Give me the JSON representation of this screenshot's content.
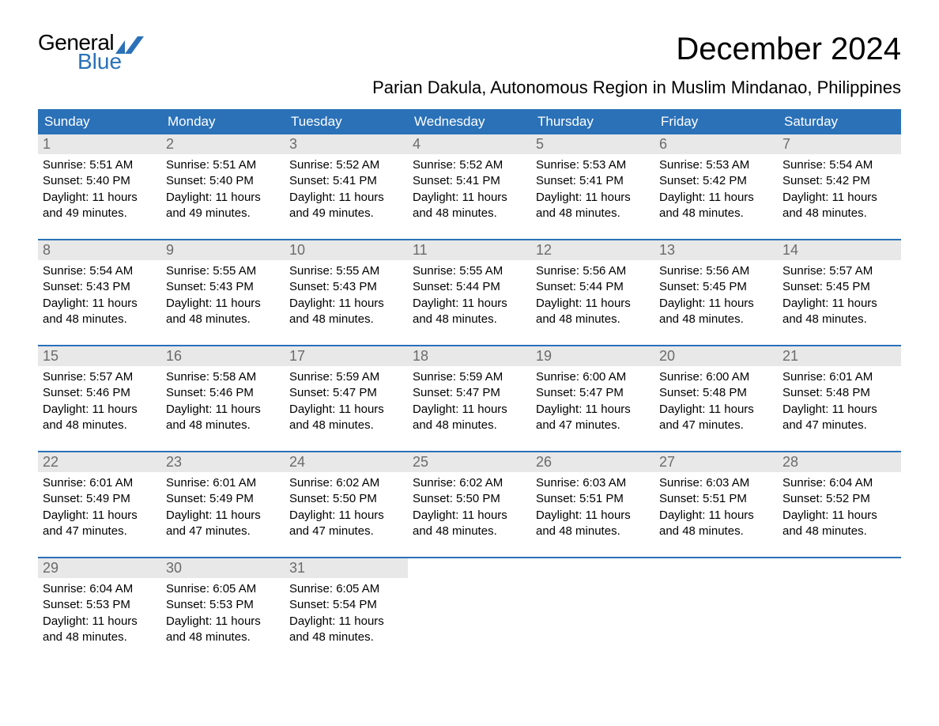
{
  "brand": {
    "word1": "General",
    "word2": "Blue",
    "accent_color": "#2a71b8"
  },
  "header": {
    "title": "December 2024",
    "subtitle": "Parian Dakula, Autonomous Region in Muslim Mindanao, Philippines"
  },
  "weekdays": [
    "Sunday",
    "Monday",
    "Tuesday",
    "Wednesday",
    "Thursday",
    "Friday",
    "Saturday"
  ],
  "style": {
    "weekday_bg": "#2a71b8",
    "weekday_fg": "#ffffff",
    "daynum_bg": "#e8e8e8",
    "daynum_fg": "#6b6b6b",
    "week_border": "#2a71b8",
    "body_bg": "#ffffff",
    "text_color": "#000000",
    "title_fontsize": 40,
    "subtitle_fontsize": 22,
    "weekday_fontsize": 17,
    "daynum_fontsize": 18,
    "body_fontsize": 15
  },
  "month": {
    "year": 2024,
    "month": 12,
    "start_weekday_index": 0,
    "num_days": 31
  },
  "days": [
    {
      "n": 1,
      "sunrise": "5:51 AM",
      "sunset": "5:40 PM",
      "daylight": "11 hours and 49 minutes."
    },
    {
      "n": 2,
      "sunrise": "5:51 AM",
      "sunset": "5:40 PM",
      "daylight": "11 hours and 49 minutes."
    },
    {
      "n": 3,
      "sunrise": "5:52 AM",
      "sunset": "5:41 PM",
      "daylight": "11 hours and 49 minutes."
    },
    {
      "n": 4,
      "sunrise": "5:52 AM",
      "sunset": "5:41 PM",
      "daylight": "11 hours and 48 minutes."
    },
    {
      "n": 5,
      "sunrise": "5:53 AM",
      "sunset": "5:41 PM",
      "daylight": "11 hours and 48 minutes."
    },
    {
      "n": 6,
      "sunrise": "5:53 AM",
      "sunset": "5:42 PM",
      "daylight": "11 hours and 48 minutes."
    },
    {
      "n": 7,
      "sunrise": "5:54 AM",
      "sunset": "5:42 PM",
      "daylight": "11 hours and 48 minutes."
    },
    {
      "n": 8,
      "sunrise": "5:54 AM",
      "sunset": "5:43 PM",
      "daylight": "11 hours and 48 minutes."
    },
    {
      "n": 9,
      "sunrise": "5:55 AM",
      "sunset": "5:43 PM",
      "daylight": "11 hours and 48 minutes."
    },
    {
      "n": 10,
      "sunrise": "5:55 AM",
      "sunset": "5:43 PM",
      "daylight": "11 hours and 48 minutes."
    },
    {
      "n": 11,
      "sunrise": "5:55 AM",
      "sunset": "5:44 PM",
      "daylight": "11 hours and 48 minutes."
    },
    {
      "n": 12,
      "sunrise": "5:56 AM",
      "sunset": "5:44 PM",
      "daylight": "11 hours and 48 minutes."
    },
    {
      "n": 13,
      "sunrise": "5:56 AM",
      "sunset": "5:45 PM",
      "daylight": "11 hours and 48 minutes."
    },
    {
      "n": 14,
      "sunrise": "5:57 AM",
      "sunset": "5:45 PM",
      "daylight": "11 hours and 48 minutes."
    },
    {
      "n": 15,
      "sunrise": "5:57 AM",
      "sunset": "5:46 PM",
      "daylight": "11 hours and 48 minutes."
    },
    {
      "n": 16,
      "sunrise": "5:58 AM",
      "sunset": "5:46 PM",
      "daylight": "11 hours and 48 minutes."
    },
    {
      "n": 17,
      "sunrise": "5:59 AM",
      "sunset": "5:47 PM",
      "daylight": "11 hours and 48 minutes."
    },
    {
      "n": 18,
      "sunrise": "5:59 AM",
      "sunset": "5:47 PM",
      "daylight": "11 hours and 48 minutes."
    },
    {
      "n": 19,
      "sunrise": "6:00 AM",
      "sunset": "5:47 PM",
      "daylight": "11 hours and 47 minutes."
    },
    {
      "n": 20,
      "sunrise": "6:00 AM",
      "sunset": "5:48 PM",
      "daylight": "11 hours and 47 minutes."
    },
    {
      "n": 21,
      "sunrise": "6:01 AM",
      "sunset": "5:48 PM",
      "daylight": "11 hours and 47 minutes."
    },
    {
      "n": 22,
      "sunrise": "6:01 AM",
      "sunset": "5:49 PM",
      "daylight": "11 hours and 47 minutes."
    },
    {
      "n": 23,
      "sunrise": "6:01 AM",
      "sunset": "5:49 PM",
      "daylight": "11 hours and 47 minutes."
    },
    {
      "n": 24,
      "sunrise": "6:02 AM",
      "sunset": "5:50 PM",
      "daylight": "11 hours and 47 minutes."
    },
    {
      "n": 25,
      "sunrise": "6:02 AM",
      "sunset": "5:50 PM",
      "daylight": "11 hours and 48 minutes."
    },
    {
      "n": 26,
      "sunrise": "6:03 AM",
      "sunset": "5:51 PM",
      "daylight": "11 hours and 48 minutes."
    },
    {
      "n": 27,
      "sunrise": "6:03 AM",
      "sunset": "5:51 PM",
      "daylight": "11 hours and 48 minutes."
    },
    {
      "n": 28,
      "sunrise": "6:04 AM",
      "sunset": "5:52 PM",
      "daylight": "11 hours and 48 minutes."
    },
    {
      "n": 29,
      "sunrise": "6:04 AM",
      "sunset": "5:53 PM",
      "daylight": "11 hours and 48 minutes."
    },
    {
      "n": 30,
      "sunrise": "6:05 AM",
      "sunset": "5:53 PM",
      "daylight": "11 hours and 48 minutes."
    },
    {
      "n": 31,
      "sunrise": "6:05 AM",
      "sunset": "5:54 PM",
      "daylight": "11 hours and 48 minutes."
    }
  ],
  "labels": {
    "sunrise": "Sunrise:",
    "sunset": "Sunset:",
    "daylight": "Daylight:"
  }
}
